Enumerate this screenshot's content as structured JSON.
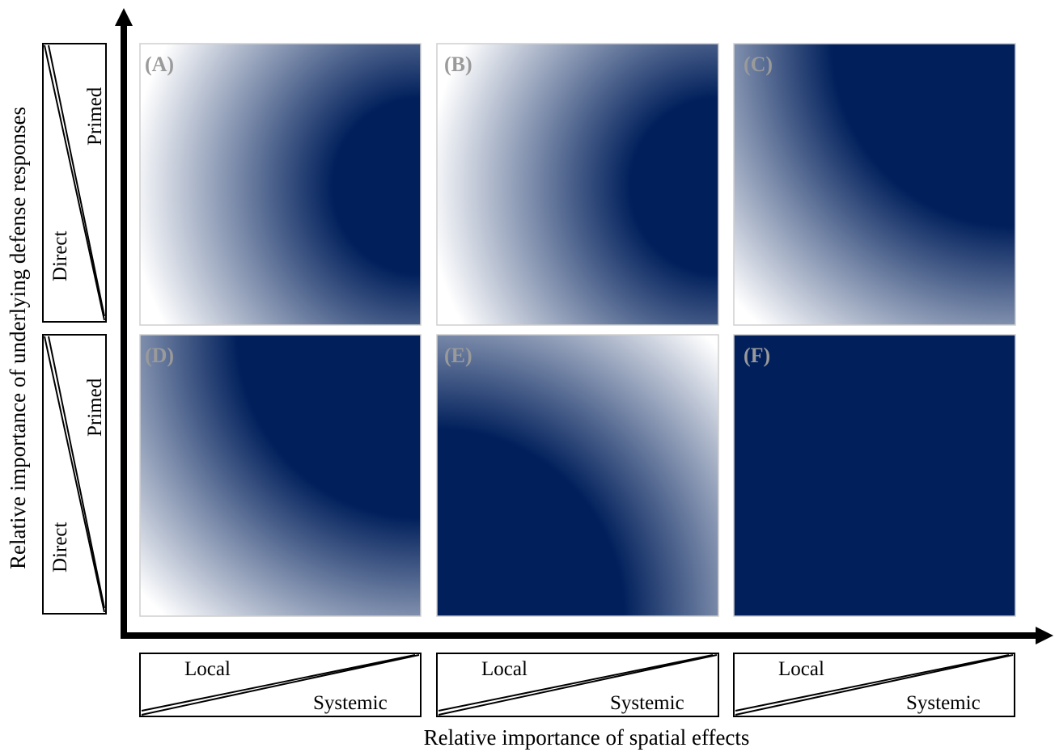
{
  "axes": {
    "x_title": "Relative importance of spatial effects",
    "y_title": "Relative importance of underlying defense responses"
  },
  "x_wedges": [
    {
      "low": "Local",
      "high": "Systemic"
    },
    {
      "low": "Local",
      "high": "Systemic"
    },
    {
      "low": "Local",
      "high": "Systemic"
    }
  ],
  "y_wedges": [
    {
      "low": "Direct",
      "high": "Primed"
    },
    {
      "low": "Direct",
      "high": "Primed"
    }
  ],
  "colors": {
    "fill": "#001f5b",
    "fade": "#ffffff",
    "label": "#9a9a9a"
  },
  "panels": [
    {
      "label": "(A)",
      "gradient": "centered right edge, white toward left"
    },
    {
      "label": "(B)",
      "gradient": "centered right edge, white toward left"
    },
    {
      "label": "(C)",
      "gradient": "centered top-right corner"
    },
    {
      "label": "(D)",
      "gradient": "centered top-right corner"
    },
    {
      "label": "(E)",
      "gradient": "band from bottom-left, white toward top-right"
    },
    {
      "label": "(F)",
      "gradient": "uniform"
    }
  ]
}
